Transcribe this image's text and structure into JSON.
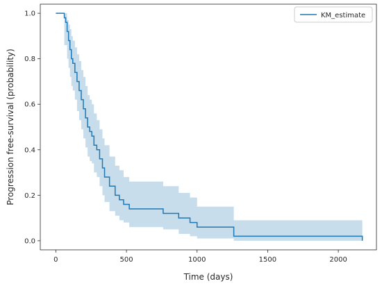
{
  "chart_data": {
    "type": "line",
    "title": "",
    "xlabel": "Time (days)",
    "ylabel": "Progression free-survival (probability)",
    "xlim": [
      -110,
      2270
    ],
    "ylim": [
      -0.04,
      1.04
    ],
    "xticks": [
      0,
      500,
      1000,
      1500,
      2000
    ],
    "yticks": [
      0.0,
      0.2,
      0.4,
      0.6,
      0.8,
      1.0
    ],
    "xtick_labels": [
      "0",
      "500",
      "1000",
      "1500",
      "2000"
    ],
    "ytick_labels": [
      "0.0",
      "0.2",
      "0.4",
      "0.6",
      "0.8",
      "1.0"
    ],
    "grid": false,
    "legend_position": "top-right",
    "colors": {
      "line": "#1f77b4",
      "band": "#1f77b4"
    },
    "series": [
      {
        "name": "KM_estimate",
        "step": true,
        "x": [
          0,
          60,
          70,
          80,
          90,
          100,
          110,
          120,
          135,
          150,
          165,
          180,
          195,
          210,
          225,
          240,
          255,
          270,
          290,
          310,
          330,
          345,
          380,
          420,
          450,
          480,
          520,
          760,
          870,
          950,
          1000,
          1260,
          2170
        ],
        "y": [
          1.0,
          0.98,
          0.96,
          0.92,
          0.88,
          0.84,
          0.8,
          0.78,
          0.74,
          0.7,
          0.66,
          0.62,
          0.58,
          0.54,
          0.5,
          0.48,
          0.46,
          0.42,
          0.4,
          0.36,
          0.32,
          0.28,
          0.24,
          0.2,
          0.18,
          0.16,
          0.14,
          0.12,
          0.1,
          0.08,
          0.06,
          0.02,
          0.0
        ],
        "ci_lower": [
          1.0,
          0.86,
          0.86,
          0.8,
          0.76,
          0.72,
          0.68,
          0.66,
          0.62,
          0.57,
          0.53,
          0.49,
          0.45,
          0.41,
          0.37,
          0.35,
          0.34,
          0.3,
          0.28,
          0.24,
          0.2,
          0.17,
          0.13,
          0.11,
          0.09,
          0.08,
          0.06,
          0.05,
          0.03,
          0.02,
          0.01,
          0.0,
          0.0
        ],
        "ci_upper": [
          1.0,
          1.0,
          1.0,
          0.97,
          0.95,
          0.93,
          0.9,
          0.88,
          0.85,
          0.82,
          0.79,
          0.75,
          0.72,
          0.68,
          0.64,
          0.62,
          0.6,
          0.56,
          0.53,
          0.49,
          0.45,
          0.42,
          0.37,
          0.33,
          0.31,
          0.28,
          0.26,
          0.24,
          0.21,
          0.19,
          0.15,
          0.09,
          0.09
        ]
      }
    ]
  }
}
